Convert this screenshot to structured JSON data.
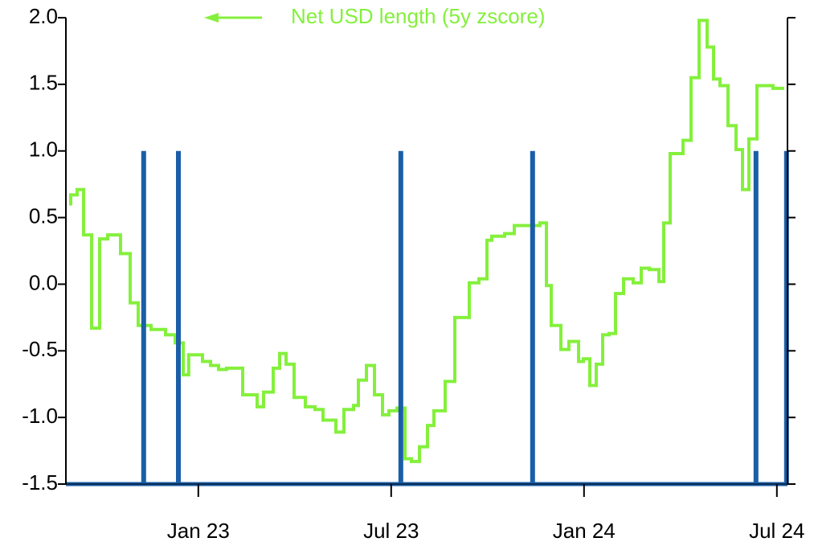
{
  "chart_data": {
    "type": "line",
    "xlim": [
      7.88,
      30.33
    ],
    "xticks": [
      {
        "value": 12,
        "label": "Jan 23"
      },
      {
        "value": 18,
        "label": "Jul 23"
      },
      {
        "value": 24,
        "label": "Jan 24"
      },
      {
        "value": 30,
        "label": "Jul 24"
      }
    ],
    "ylim": [
      -1.5,
      2.0
    ],
    "yticks": [
      {
        "value": 2.0,
        "label": "2.0"
      },
      {
        "value": 1.5,
        "label": "1.5"
      },
      {
        "value": 1.0,
        "label": "1.0"
      },
      {
        "value": 0.5,
        "label": "0.5"
      },
      {
        "value": 0.0,
        "label": "0.0"
      },
      {
        "value": -0.5,
        "label": "-0.5"
      },
      {
        "value": -1.0,
        "label": "-1.0"
      },
      {
        "value": -1.5,
        "label": "-1.5"
      }
    ],
    "legend": "top",
    "series": [
      {
        "name": "Net USD length (5y zscore)",
        "color": "#84f03c",
        "step": true,
        "x": [
          8.03,
          8.23,
          8.43,
          8.68,
          8.93,
          9.18,
          9.58,
          9.88,
          10.13,
          10.53,
          10.98,
          11.28,
          11.53,
          11.7,
          12.13,
          12.38,
          12.63,
          12.88,
          13.38,
          13.83,
          14.03,
          14.33,
          14.53,
          14.73,
          14.98,
          15.33,
          15.63,
          15.88,
          16.28,
          16.53,
          16.83,
          16.98,
          17.23,
          17.48,
          17.73,
          17.93,
          18.18,
          18.43,
          18.63,
          18.88,
          19.13,
          19.33,
          19.68,
          19.98,
          20.43,
          20.73,
          20.98,
          21.13,
          21.53,
          21.83,
          22.63,
          22.83,
          22.98,
          23.28,
          23.53,
          23.83,
          23.98,
          24.18,
          24.38,
          24.58,
          24.78,
          24.98,
          25.23,
          25.53,
          25.78,
          26.03,
          26.33,
          26.48,
          26.68,
          27.08,
          27.33,
          27.58,
          27.83,
          28.03,
          28.23,
          28.48,
          28.73,
          28.93,
          29.13,
          29.38,
          29.88,
          30.23
        ],
        "values": [
          0.59,
          0.67,
          0.71,
          0.37,
          -0.33,
          0.34,
          0.37,
          0.23,
          -0.14,
          -0.31,
          -0.34,
          -0.38,
          -0.44,
          -0.68,
          -0.53,
          -0.58,
          -0.61,
          -0.64,
          -0.63,
          -0.83,
          -0.92,
          -0.81,
          -0.63,
          -0.52,
          -0.6,
          -0.85,
          -0.92,
          -0.94,
          -1.02,
          -1.11,
          -0.94,
          -0.91,
          -0.72,
          -0.61,
          -0.83,
          -0.98,
          -0.95,
          -0.93,
          -1.31,
          -1.33,
          -1.22,
          -1.06,
          -0.95,
          -0.73,
          -0.25,
          0.01,
          0.04,
          0.33,
          0.36,
          0.38,
          0.44,
          0.46,
          -0.01,
          -0.31,
          -0.49,
          -0.43,
          -0.58,
          -0.56,
          -0.76,
          -0.6,
          -0.38,
          -0.37,
          -0.07,
          0.04,
          0.01,
          0.12,
          0.11,
          0.02,
          0.46,
          0.98,
          1.08,
          1.55,
          1.98,
          1.78,
          1.54,
          1.49,
          1.19,
          1.01,
          0.71,
          1.09,
          1.49,
          1.47
        ]
      },
      {
        "color": "#1a5ea8",
        "spikes": true,
        "x": [
          10.3,
          11.38,
          18.3,
          22.4,
          29.35,
          30.3
        ],
        "values": [
          1.0,
          1.0,
          1.0,
          1.0,
          1.0,
          1.0
        ]
      }
    ]
  }
}
